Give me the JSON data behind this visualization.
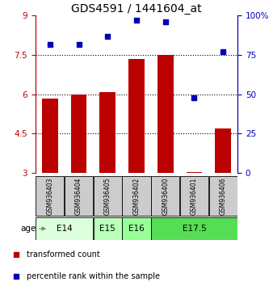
{
  "title": "GDS4591 / 1441604_at",
  "samples": [
    "GSM936403",
    "GSM936404",
    "GSM936405",
    "GSM936402",
    "GSM936400",
    "GSM936401",
    "GSM936406"
  ],
  "transformed_count": [
    5.85,
    6.0,
    6.1,
    7.35,
    7.5,
    3.05,
    4.7
  ],
  "percentile_rank": [
    82,
    82,
    87,
    97,
    96,
    48,
    77
  ],
  "bar_color": "#bb0000",
  "dot_color": "#0000bb",
  "ylim_left": [
    3,
    9
  ],
  "ylim_right": [
    0,
    100
  ],
  "yticks_left": [
    3,
    4.5,
    6,
    7.5,
    9
  ],
  "yticks_right": [
    0,
    25,
    50,
    75,
    100
  ],
  "ytick_labels_left": [
    "3",
    "4.5",
    "6",
    "7.5",
    "9"
  ],
  "ytick_labels_right": [
    "0",
    "25",
    "50",
    "75",
    "100%"
  ],
  "hlines": [
    4.5,
    6.0,
    7.5
  ],
  "age_groups": [
    {
      "label": "E14",
      "start": 0,
      "end": 2,
      "color": "#ddffdd"
    },
    {
      "label": "E15",
      "start": 2,
      "end": 3,
      "color": "#bbffbb"
    },
    {
      "label": "E16",
      "start": 3,
      "end": 4,
      "color": "#99ff99"
    },
    {
      "label": "E17.5",
      "start": 4,
      "end": 7,
      "color": "#55dd55"
    }
  ],
  "legend_items": [
    {
      "label": "transformed count",
      "color": "#bb0000"
    },
    {
      "label": "percentile rank within the sample",
      "color": "#0000bb"
    }
  ],
  "background_color": "#ffffff",
  "sample_box_color": "#cccccc",
  "title_fontsize": 10,
  "tick_fontsize": 7.5,
  "sample_fontsize": 5.5,
  "age_fontsize": 7.5,
  "legend_fontsize": 7
}
